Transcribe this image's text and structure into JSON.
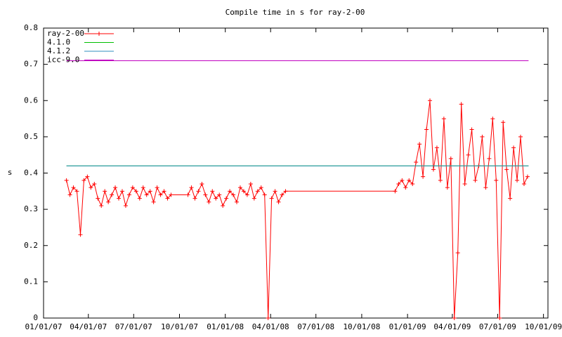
{
  "chart_data": {
    "type": "line",
    "title": "Compile time in s for ray-2-00",
    "y_label": "s",
    "xlim": [
      "2007-01-01",
      "2009-10-10"
    ],
    "ylim": [
      0,
      0.8
    ],
    "yticks": [
      0,
      0.1,
      0.2,
      0.3,
      0.4,
      0.5,
      0.6,
      0.7,
      0.8
    ],
    "xticks": [
      {
        "value": "2007-01-01",
        "label": "01/01/07"
      },
      {
        "value": "2007-04-01",
        "label": "04/01/07"
      },
      {
        "value": "2007-07-01",
        "label": "07/01/07"
      },
      {
        "value": "2007-10-01",
        "label": "10/01/07"
      },
      {
        "value": "2008-01-01",
        "label": "01/01/08"
      },
      {
        "value": "2008-04-01",
        "label": "04/01/08"
      },
      {
        "value": "2008-07-01",
        "label": "07/01/08"
      },
      {
        "value": "2008-10-01",
        "label": "10/01/08"
      },
      {
        "value": "2009-01-01",
        "label": "01/01/09"
      },
      {
        "value": "2009-04-01",
        "label": "04/01/09"
      },
      {
        "value": "2009-07-01",
        "label": "07/01/09"
      },
      {
        "value": "2009-10-01",
        "label": "10/01/09"
      }
    ],
    "legend": "top-left",
    "series": [
      {
        "name": "ray-2-00",
        "color": "#ff0000",
        "markers": true,
        "x": [
          "2007-02-16",
          "2007-02-23",
          "2007-03-02",
          "2007-03-09",
          "2007-03-16",
          "2007-03-23",
          "2007-03-30",
          "2007-04-06",
          "2007-04-13",
          "2007-04-20",
          "2007-04-27",
          "2007-05-04",
          "2007-05-11",
          "2007-05-18",
          "2007-05-25",
          "2007-06-01",
          "2007-06-08",
          "2007-06-15",
          "2007-06-22",
          "2007-06-29",
          "2007-07-06",
          "2007-07-13",
          "2007-07-20",
          "2007-07-27",
          "2007-08-03",
          "2007-08-10",
          "2007-08-17",
          "2007-08-24",
          "2007-08-31",
          "2007-09-07",
          "2007-09-14",
          "2007-10-18",
          "2007-10-25",
          "2007-11-01",
          "2007-11-08",
          "2007-11-15",
          "2007-11-22",
          "2007-11-29",
          "2007-12-06",
          "2007-12-13",
          "2007-12-20",
          "2007-12-27",
          "2008-01-03",
          "2008-01-10",
          "2008-01-17",
          "2008-01-24",
          "2008-01-31",
          "2008-02-07",
          "2008-02-14",
          "2008-02-21",
          "2008-02-28",
          "2008-03-06",
          "2008-03-13",
          "2008-03-20",
          "2008-03-27",
          "2008-04-03",
          "2008-04-10",
          "2008-04-17",
          "2008-04-24",
          "2008-05-01",
          "2008-12-07",
          "2008-12-14",
          "2008-12-21",
          "2008-12-28",
          "2009-01-04",
          "2009-01-11",
          "2009-01-18",
          "2009-01-25",
          "2009-02-01",
          "2009-02-08",
          "2009-02-15",
          "2009-02-22",
          "2009-03-01",
          "2009-03-08",
          "2009-03-15",
          "2009-03-22",
          "2009-03-29",
          "2009-04-05",
          "2009-04-12",
          "2009-04-19",
          "2009-04-26",
          "2009-05-03",
          "2009-05-10",
          "2009-05-17",
          "2009-05-24",
          "2009-05-31",
          "2009-06-07",
          "2009-06-14",
          "2009-06-21",
          "2009-06-28",
          "2009-07-05",
          "2009-07-12",
          "2009-07-19",
          "2009-07-26",
          "2009-08-02",
          "2009-08-09",
          "2009-08-16",
          "2009-08-23",
          "2009-08-30"
        ],
        "values": [
          0.38,
          0.34,
          0.36,
          0.35,
          0.23,
          0.38,
          0.39,
          0.36,
          0.37,
          0.33,
          0.31,
          0.35,
          0.32,
          0.34,
          0.36,
          0.33,
          0.35,
          0.31,
          0.34,
          0.36,
          0.35,
          0.33,
          0.36,
          0.34,
          0.35,
          0.32,
          0.36,
          0.34,
          0.35,
          0.33,
          0.34,
          0.34,
          0.36,
          0.33,
          0.35,
          0.37,
          0.34,
          0.32,
          0.35,
          0.33,
          0.34,
          0.31,
          0.33,
          0.35,
          0.34,
          0.32,
          0.36,
          0.35,
          0.34,
          0.37,
          0.33,
          0.35,
          0.36,
          0.34,
          0.0,
          0.33,
          0.35,
          0.32,
          0.34,
          0.35,
          0.35,
          0.37,
          0.38,
          0.36,
          0.38,
          0.37,
          0.43,
          0.48,
          0.39,
          0.52,
          0.6,
          0.41,
          0.47,
          0.38,
          0.55,
          0.36,
          0.44,
          0.0,
          0.18,
          0.59,
          0.37,
          0.45,
          0.52,
          0.38,
          0.42,
          0.5,
          0.36,
          0.44,
          0.55,
          0.38,
          0.0,
          0.54,
          0.41,
          0.33,
          0.47,
          0.38,
          0.5,
          0.37,
          0.39
        ]
      },
      {
        "name": "4.1.0",
        "color": "#00c000",
        "x": [
          "2007-02-16",
          "2009-09-01"
        ],
        "values": [
          0.42,
          0.42
        ]
      },
      {
        "name": "4.1.2",
        "color": "#2f8fbf",
        "x": [
          "2007-02-16",
          "2009-09-01"
        ],
        "values": [
          0.42,
          0.42
        ]
      },
      {
        "name": "icc-9.0",
        "color": "#c000c0",
        "x": [
          "2007-02-16",
          "2009-09-01"
        ],
        "values": [
          0.71,
          0.71
        ]
      }
    ]
  }
}
